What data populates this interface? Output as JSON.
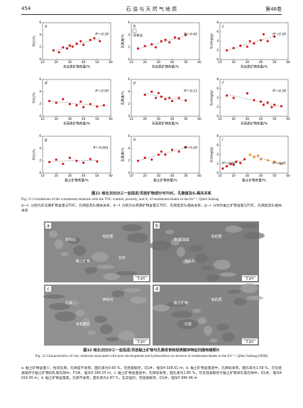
{
  "header": {
    "page": "454",
    "journal": "石 油 与 天 然 气 地 质",
    "volume": "第46卷"
  },
  "figure11": {
    "panels": [
      {
        "label": "a",
        "xlabel": "灰云质矿物含量/%",
        "ylabel": "TOC/%",
        "xlim": [
          10,
          60
        ],
        "xticks": [
          10,
          20,
          30,
          40,
          50,
          60
        ],
        "ylim": [
          0,
          6
        ],
        "yticks": [
          0,
          2,
          4,
          6
        ],
        "series": [
          {
            "color": "#d7191c",
            "r2": "R²=0.39",
            "x": [
              18,
              22,
              25,
              28,
              30,
              32,
              35,
              38,
              40,
              45,
              48,
              52
            ],
            "y": [
              1.5,
              1.2,
              2.0,
              1.8,
              2.3,
              2.1,
              2.6,
              3.0,
              2.4,
              3.2,
              3.5,
              3.0
            ]
          }
        ]
      },
      {
        "label": "b",
        "xlabel": "灰云质矿物含量/%",
        "ylabel": "孔隙度/%",
        "annotation": "异常点",
        "xlim": [
          10,
          60
        ],
        "xticks": [
          10,
          20,
          30,
          40,
          50,
          60
        ],
        "ylim": [
          0,
          6
        ],
        "yticks": [
          0,
          2,
          4,
          6
        ],
        "series": [
          {
            "color": "#d7191c",
            "r2": "R²=0.42",
            "x": [
              15,
              20,
              25,
              28,
              32,
              35,
              38,
              42,
              45,
              50
            ],
            "y": [
              1.8,
              2.2,
              2.5,
              2.0,
              3.0,
              3.2,
              2.8,
              3.6,
              3.4,
              4.0
            ]
          }
        ]
      },
      {
        "label": "c",
        "xlabel": "灰云质矿物含量/%",
        "ylabel": "S₁/(mg/g)",
        "xlim": [
          10,
          60
        ],
        "xticks": [
          10,
          20,
          30,
          40,
          50,
          60
        ],
        "ylim": [
          0,
          8
        ],
        "yticks": [
          0,
          2,
          4,
          6,
          8
        ],
        "series": [
          {
            "color": "#d7191c",
            "r2": "R²=0.26",
            "x": [
              15,
              20,
              25,
              30,
              32,
              35,
              40,
              42,
              45,
              50
            ],
            "y": [
              2.0,
              2.5,
              3.0,
              2.8,
              4.0,
              3.5,
              4.2,
              5.5,
              4.0,
              5.0
            ]
          }
        ]
      },
      {
        "label": "d",
        "xlabel": "长英质矿物含量/%",
        "ylabel": "TOC/%",
        "xlim": [
          10,
          60
        ],
        "xticks": [
          10,
          20,
          30,
          40,
          50,
          60
        ],
        "ylim": [
          0,
          6
        ],
        "yticks": [
          0,
          2,
          4,
          6
        ],
        "series": [
          {
            "color": "#d7191c",
            "r2": "R²=0.09",
            "x": [
              15,
              20,
              25,
              30,
              35,
              38,
              40,
              45,
              50,
              55
            ],
            "y": [
              2.5,
              2.2,
              2.8,
              2.0,
              1.8,
              2.4,
              1.5,
              2.0,
              1.6,
              1.8
            ]
          }
        ]
      },
      {
        "label": "e",
        "xlabel": "长英质矿物含量/%",
        "ylabel": "孔隙度/%",
        "xlim": [
          10,
          60
        ],
        "xticks": [
          10,
          20,
          30,
          40,
          50,
          60
        ],
        "ylim": [
          0,
          6
        ],
        "yticks": [
          0,
          2,
          4,
          6
        ],
        "series": [
          {
            "color": "#d7191c",
            "r2": "R²=0.11",
            "x": [
              20,
              25,
              28,
              30,
              32,
              35,
              38,
              40,
              45,
              50
            ],
            "y": [
              3.5,
              4.0,
              3.0,
              3.8,
              3.2,
              2.8,
              3.0,
              2.5,
              3.0,
              2.6
            ]
          }
        ]
      },
      {
        "label": "f",
        "xlabel": "长英质矿物含量/%",
        "ylabel": "S₁/(mg/g)",
        "xlim": [
          10,
          60
        ],
        "xticks": [
          10,
          20,
          30,
          40,
          50,
          60
        ],
        "ylim": [
          0,
          8
        ],
        "yticks": [
          0,
          2,
          4,
          6,
          8
        ],
        "series": [
          {
            "color": "#d7191c",
            "r2": "R²=0.34",
            "x": [
              15,
              20,
              30,
              35,
              40,
              42,
              45,
              48,
              50,
              55
            ],
            "y": [
              4.5,
              4.0,
              5.0,
              3.5,
              3.2,
              2.5,
              3.0,
              2.0,
              2.5,
              2.2
            ]
          }
        ]
      },
      {
        "label": "g",
        "xlabel": "黏土矿物含量/%",
        "ylabel": "TOC/%",
        "xlim": [
          10,
          60
        ],
        "xticks": [
          10,
          20,
          30,
          40,
          50,
          60
        ],
        "ylim": [
          0,
          6
        ],
        "yticks": [
          0,
          2,
          4,
          6
        ],
        "series": [
          {
            "color": "#d7191c",
            "r2": "R²=0.001",
            "x": [
              15,
              20,
              25,
              30,
              35,
              40,
              45,
              50
            ],
            "y": [
              1.8,
              2.2,
              1.5,
              2.5,
              2.0,
              1.7,
              2.3,
              1.9
            ]
          }
        ]
      },
      {
        "label": "h",
        "xlabel": "黏土矿物含量/%",
        "ylabel": "孔隙度/%",
        "xlim": [
          10,
          60
        ],
        "xticks": [
          10,
          20,
          30,
          40,
          50,
          60
        ],
        "ylim": [
          0,
          6
        ],
        "yticks": [
          0,
          2,
          4,
          6
        ],
        "series": [
          {
            "color": "#d7191c",
            "r2": "R²=0.29",
            "x": [
              15,
              20,
              25,
              30,
              32,
              35,
              40,
              45,
              50
            ],
            "y": [
              2.0,
              2.5,
              2.2,
              3.0,
              3.5,
              3.0,
              3.8,
              3.5,
              4.2
            ]
          }
        ]
      },
      {
        "label": "i",
        "xlabel": "黏土矿物含量/%",
        "ylabel": "S₁/(mg/g)",
        "xlim": [
          10,
          60
        ],
        "xticks": [
          10,
          20,
          30,
          40,
          50,
          60
        ],
        "ylim": [
          0,
          8
        ],
        "yticks": [
          0,
          2,
          4,
          6,
          8
        ],
        "series": [
          {
            "color": "#d7191c",
            "r2": "R²=0.30",
            "x": [
              12,
              15,
              18,
              20,
              22,
              25,
              28
            ],
            "y": [
              1.0,
              1.5,
              2.0,
              1.8,
              2.5,
              2.2,
              3.0
            ]
          },
          {
            "color": "#f08a24",
            "r2": "R²=0.45",
            "x": [
              32,
              35,
              38,
              40,
              45,
              50,
              55
            ],
            "y": [
              4.0,
              3.5,
              3.8,
              3.0,
              2.8,
              2.5,
              2.0
            ]
          }
        ]
      }
    ],
    "caption_cn": "图11 岐北次凹沙三一亚段泥/页岩矿物成分与TOC、孔隙度及S₁相关关系",
    "caption_en": "Fig. 11 Correlations of the constituent minerals with the TOC content, porosity, and S₁ of mudstones/shales in the Es³⁻¹, Qibei Subsag",
    "note": "a—c. 分别为灰云质矿物含量与TOC、孔隙度及S₁相关关系；d—f. 分别为长英质矿物含量与TOC、孔隙度及S₁相关关系；g—i. 分别为黏土矿物含量与TOC、孔隙度及S₁相关关系"
  },
  "figure12": {
    "panels": [
      {
        "label": "a",
        "scale": "2 μm",
        "labels": [
          "伊利石",
          "有机质",
          "黏土矿物",
          "长石"
        ]
      },
      {
        "label": "b",
        "scale": "2 μm",
        "labels": [
          "伊/蒙混层",
          "有机质",
          "白云石"
        ]
      },
      {
        "label": "c",
        "scale": "2 μm",
        "labels": [
          "石英",
          "伊利石",
          "有机质孔"
        ]
      },
      {
        "label": "d",
        "scale": "2 μm",
        "labels": [
          "黏土矿物",
          "有机质",
          "石英"
        ]
      }
    ],
    "caption_cn": "图12 岐北次凹沙三一亚段泥/页岩黏土矿物与孔隙发育和烃类赋存特征扫描电镜照片",
    "caption_en": "Fig. 12 Characteristics of clay minerals associated with pore development and hydrocarbon occurrence of mudstones/shales in the Es³⁻¹, Qibei Subsag (SEM)",
    "note": "a. 黏土矿物含量少，粒间孔隙，孔隙度不发育，面孔率为0.60 %，无烃类赋存，Q1井，埋深4 028.61 m；b. 黏土矿物含量适中，孔隙较发育，面孔率为1.58 %，可见烃类赋存于黏土矿物间孔等孔隙中，F1井，埋深4 184.55 m；c. 黏土矿物含量适中，孔隙较发育，面孔率为1.85 %，可见烃类赋存于黏土矿物间孔等孔隙中，Q1井，埋深4 016.45 m；d. 黏土矿物含量高，孔隙不发育，面孔率为2.87 %，压实强烈，无烃类赋存，Q1井，埋深3 990.46 m"
  }
}
